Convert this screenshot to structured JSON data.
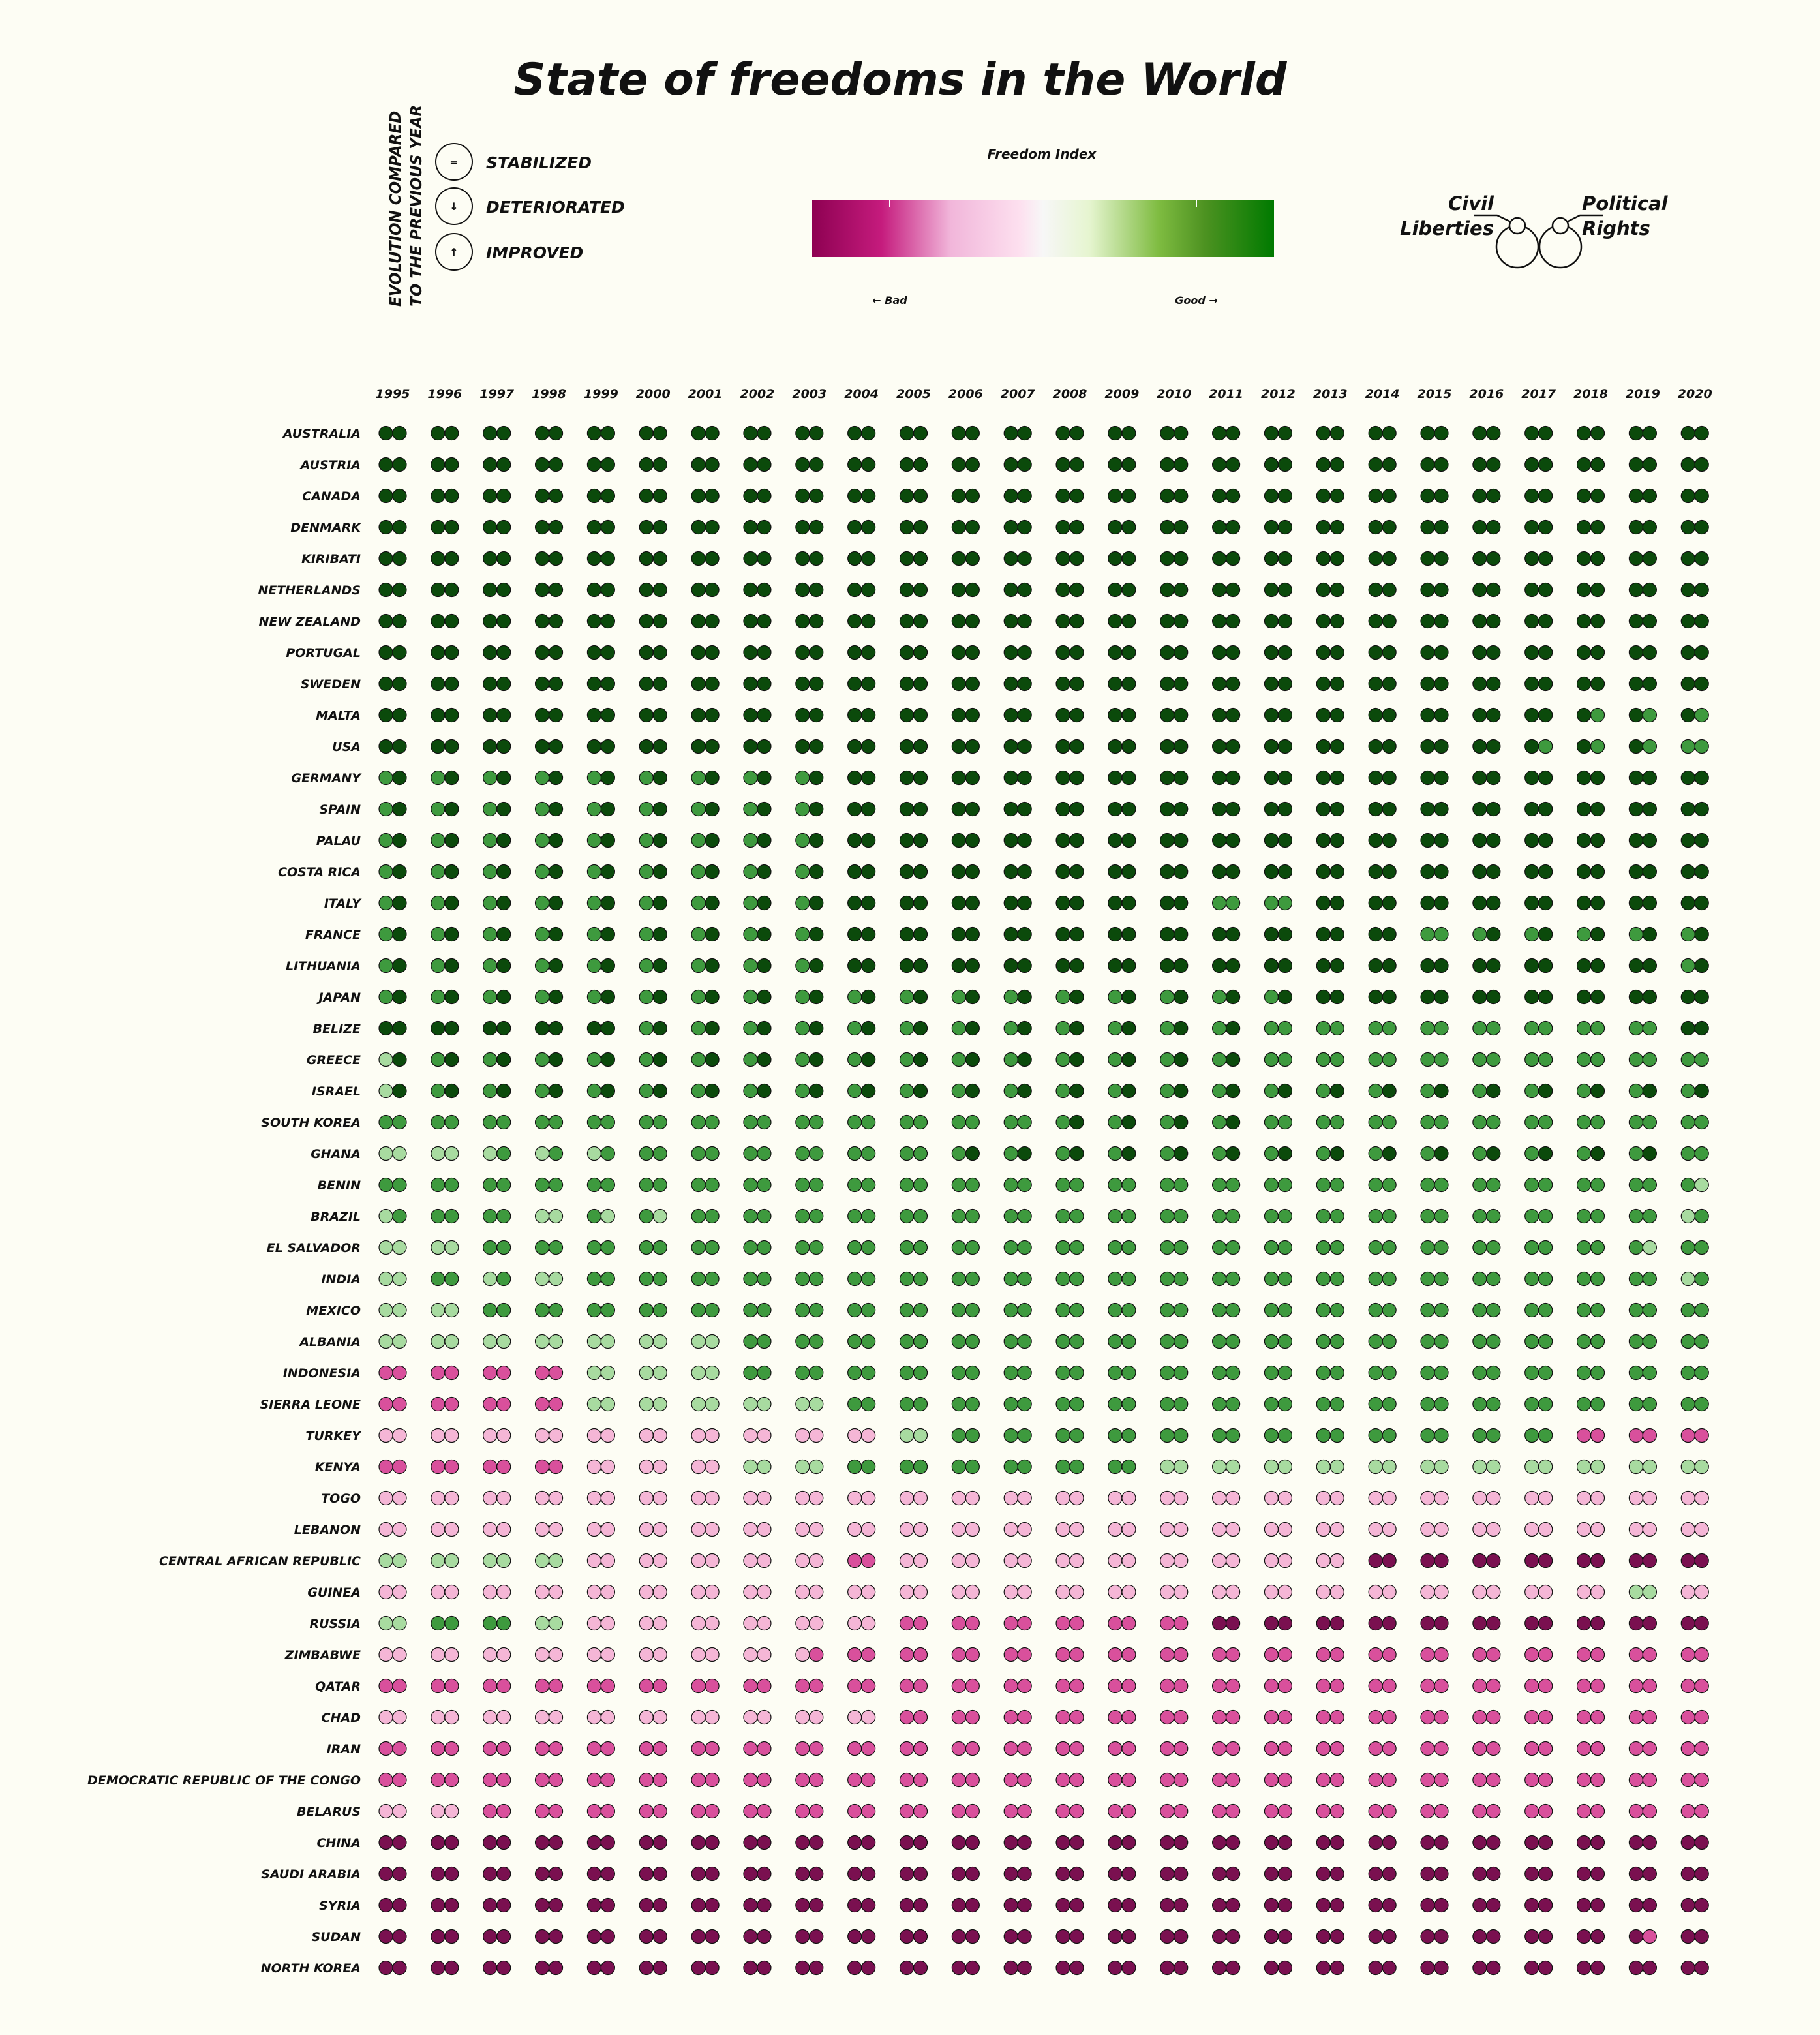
{
  "chart_data": {
    "type": "dot-matrix",
    "title": "State of freedoms in the World",
    "years": [
      1995,
      1996,
      1997,
      1998,
      1999,
      2000,
      2001,
      2002,
      2003,
      2004,
      2005,
      2006,
      2007,
      2008,
      2009,
      2010,
      2011,
      2012,
      2013,
      2014,
      2015,
      2016,
      2017,
      2018,
      2019,
      2020
    ],
    "countries": [
      "AUSTRALIA",
      "AUSTRIA",
      "CANADA",
      "DENMARK",
      "KIRIBATI",
      "NETHERLANDS",
      "NEW ZEALAND",
      "PORTUGAL",
      "SWEDEN",
      "MALTA",
      "USA",
      "GERMANY",
      "SPAIN",
      "PALAU",
      "COSTA RICA",
      "ITALY",
      "FRANCE",
      "LITHUANIA",
      "JAPAN",
      "BELIZE",
      "GREECE",
      "ISRAEL",
      "SOUTH KOREA",
      "GHANA",
      "BENIN",
      "BRAZIL",
      "EL SALVADOR",
      "INDIA",
      "MEXICO",
      "ALBANIA",
      "INDONESIA",
      "SIERRA LEONE",
      "TURKEY",
      "KENYA",
      "TOGO",
      "LEBANON",
      "CENTRAL AFRICAN REPUBLIC",
      "GUINEA",
      "RUSSIA",
      "ZIMBABWE",
      "QATAR",
      "CHAD",
      "IRAN",
      "DEMOCRATIC REPUBLIC OF THE CONGO",
      "BELARUS",
      "CHINA",
      "SAUDI ARABIA",
      "SYRIA",
      "SUDAN",
      "NORTH KOREA"
    ],
    "index_scale": {
      "min": 1,
      "max": 7,
      "note": "1 = Good (green), 7 = Bad (purple)"
    },
    "series_rows": [
      "1111111111111111111111111111111111111111111111111111",
      "1111111111111111111111111111111111111111111111111111",
      "1111111111111111111111111111111111111111111111111111",
      "1111111111111111111111111111111111111111111111111111",
      "1111111111111111111111111111111111111111111111111111",
      "1111111111111111111111111111111111111111111111111111",
      "1111111111111111111111111111111111111111111111111111",
      "1111111111111111111111111111111111111111111111111111",
      "1111111111111111111111111111111111111111111111111111",
      "1111111111111111111111111111111111111111111111121212",
      "1111111111111111111111111111111111111111111112121222",
      "2121212121212121211111111111111111111111111111111111",
      "2121212121212121211111111111111111111111111111111111",
      "2121212121212121211111111111111111111111111111111111",
      "2121212121212121211111111111111111111111111111111111",
      "2121212121212121211111111111111122221111111111111111",
      "2121212121212121211111111111111111111111222121212121",
      "2121212121212121211111111111111111111111111111111121",
      "2121212121212121212121212121212121211111111111111111",
      "1111111111212121212121212121212121222222222222222211",
      "3121212121212121212121212121212121222222222222222222",
      "3121212121212121212121212121212121212121212121212121",
      "2222222222222222222222222221212121222222222222222222",
      "3333323232222222222222212121212121212121212121212122",
      "2222222222222222222222222222222222222222222222222223",
      "3222223323232222222222222222222222222222222222222232",
      "3333222222222222222222222222222222222222222222222322",
      "3322323322222222222222222222222222222222222222222232",
      "3333222222222222222222222222222222222222222222222222",
      "3333333333333322222222222222222222222222222222222222",
      "5555555533333322222222222222222222222222222222222222",
      "5555555533333333332222222222222222222222222222222222",
      "4444444444444444444433222222222222222222222222555555",
      "5555555544444433332222222222223333333333333333333333",
      "4444444444444444444444444444444444444444444444444444",
      "4444444444444444444444444444444444444444444444444444",
      "3333333344444444445544444444444444444466666666666666",
      "4444444444444444444444444444444444444444444444443344",
      "3322223344444444444455555555555566666666666666666666",
      "4444444444444444455555555555555555555555555555555555",
      "5555555555555555555555555555555555555555555555555555",
      "4444444444444444444455555555555555555555555555555555",
      "5555555555555555555555555555555555555555555555555555",
      "5555555555555555555555555555555555555555555555555555",
      "4444555555555555555555555555555555555555555555555555",
      "6666666666666666666666666666666666666666666666666666",
      "6666666666666666666666666666666666666666666666666666",
      "6666666666666666666666666666666666666666666666666666",
      "6666666666666666666666666666666666666666666666666566",
      "6666666666666666666666666666666666666666666666666666"
    ],
    "legend": {
      "evolution_title_line1": "EVOLUTION COMPARED",
      "evolution_title_line2": "TO THE PREVIOUS YEAR",
      "stabilized": "STABILIZED",
      "deteriorated": "DETERIORATED",
      "improved": "IMPROVED",
      "stabilized_symbol": "=",
      "deteriorated_symbol": "↓",
      "improved_symbol": "↑",
      "colorbar_title": "Freedom Index",
      "colorbar_bad": "← Bad",
      "colorbar_good": "Good →",
      "pair_left_line1": "Civil",
      "pair_left_line2": "Liberties",
      "pair_right_line1": "Political",
      "pair_right_line2": "Rights"
    },
    "colors": {
      "1": "#0b4a0b",
      "2": "#3e9a3e",
      "3": "#a8dba0",
      "4": "#f5b6d6",
      "5": "#d9509c",
      "6": "#7a1050",
      "background": "#fdfdf4"
    }
  }
}
